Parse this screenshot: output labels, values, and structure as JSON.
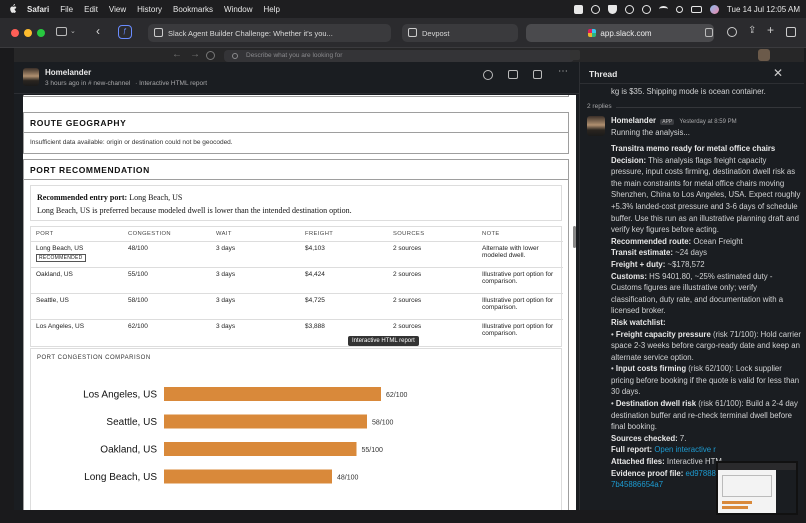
{
  "menubar": {
    "app": "Safari",
    "items": [
      "File",
      "Edit",
      "View",
      "History",
      "Bookmarks",
      "Window",
      "Help"
    ],
    "clock": "Tue 14 Jul  12:05 AM"
  },
  "safari": {
    "tabs": [
      {
        "label": "Slack Agent Builder Challenge: Whether it's you..."
      },
      {
        "label": "Devpost"
      }
    ],
    "address": "app.slack.com"
  },
  "slack": {
    "search_placeholder": "Describe what you are looking for"
  },
  "message_header": {
    "author": "Homelander",
    "meta_time": "3 hours ago in",
    "channel": "# new-channel",
    "title": "· Interactive HTML report"
  },
  "report": {
    "route_geo_title": "ROUTE GEOGRAPHY",
    "route_geo_text": "Insufficient data available: origin or destination could not be geocoded.",
    "port_rec_title": "PORT RECOMMENDATION",
    "rec_label": "Recommended entry port:",
    "rec_value": "Long Beach, US",
    "rec_reason": "Long Beach, US is preferred because modeled dwell is lower than the intended destination option.",
    "table_headers": [
      "PORT",
      "CONGESTION",
      "WAIT",
      "FREIGHT",
      "SOURCES",
      "NOTE"
    ],
    "rows": [
      {
        "port": "Long Beach, US",
        "badge": "RECOMMENDED",
        "congestion": "48/100",
        "wait": "3 days",
        "freight": "$4,103",
        "sources": "2 sources",
        "note": "Alternate with lower modeled dwell."
      },
      {
        "port": "Oakland, US",
        "badge": "",
        "congestion": "55/100",
        "wait": "3 days",
        "freight": "$4,424",
        "sources": "2 sources",
        "note": "Illustrative port option for comparison."
      },
      {
        "port": "Seattle, US",
        "badge": "",
        "congestion": "58/100",
        "wait": "3 days",
        "freight": "$4,725",
        "sources": "2 sources",
        "note": "Illustrative port option for comparison."
      },
      {
        "port": "Los Angeles, US",
        "badge": "",
        "congestion": "62/100",
        "wait": "3 days",
        "freight": "$3,888",
        "sources": "2 sources",
        "note": "Illustrative port option for comparison."
      }
    ],
    "tooltip": "Interactive HTML report"
  },
  "chart_data": {
    "type": "bar",
    "orientation": "horizontal",
    "title": "PORT CONGESTION COMPARISON",
    "categories": [
      "Los Angeles, US",
      "Seattle, US",
      "Oakland, US",
      "Long Beach, US"
    ],
    "values": [
      62,
      58,
      55,
      48
    ],
    "value_labels": [
      "62/100",
      "58/100",
      "55/100",
      "48/100"
    ],
    "xlim": [
      0,
      100
    ],
    "color": "#d9893a",
    "grid": false
  },
  "thread": {
    "title": "Thread",
    "prev_text": "kg is $35. Shipping mode is ocean container.",
    "replies": "2 replies",
    "author": "Homelander",
    "app_badge": "APP",
    "time": "Yesterday at 8:59 PM",
    "running": "Running the analysis...",
    "memo_title": "Transitra memo ready for metal office chairs",
    "decision_label": "Decision:",
    "decision_text": " This analysis flags freight capacity pressure, input costs firming, destination dwell risk as the main constraints for metal office chairs moving Shenzhen, China to Los Angeles, USA. Expect roughly +5.3% landed-cost pressure and 3-6 days of schedule buffer. Use this run as an illustrative planning draft and verify key figures before acting.",
    "route_label": "Recommended route:",
    "route_value": " Ocean Freight",
    "transit_label": "Transit estimate:",
    "transit_value": " ~24 days",
    "freight_label": "Freight + duty:",
    "freight_value": " ~$178,572",
    "customs_label": "Customs:",
    "customs_value": " HS 9401.80, ~25% estimated duty - Customs figures are illustrative only; verify classification, duty rate, and documentation with a licensed broker.",
    "watch_label": "Risk watchlist:",
    "w1_label": "Freight capacity pressure",
    "w1_text": " (risk 71/100): Hold carrier space 2-3 weeks before cargo-ready date and keep an alternate service option.",
    "w2_label": "Input costs firming",
    "w2_text": " (risk 62/100): Lock supplier pricing before booking if the quote is valid for less than 30 days.",
    "w3_label": "Destination dwell risk",
    "w3_text": " (risk 61/100): Build a 2-4 day destination buffer and re-check terminal dwell before final booking.",
    "sources_label": "Sources checked:",
    "sources_value": " 7.",
    "full_label": "Full report:",
    "full_link": " Open interactive r",
    "attached_label": "Attached files:",
    "attached_value": " Interactive HTM",
    "proof_label": "Evidence proof file:",
    "proof_link": " ed97888a",
    "proof_link2": "7b45886654a7"
  }
}
